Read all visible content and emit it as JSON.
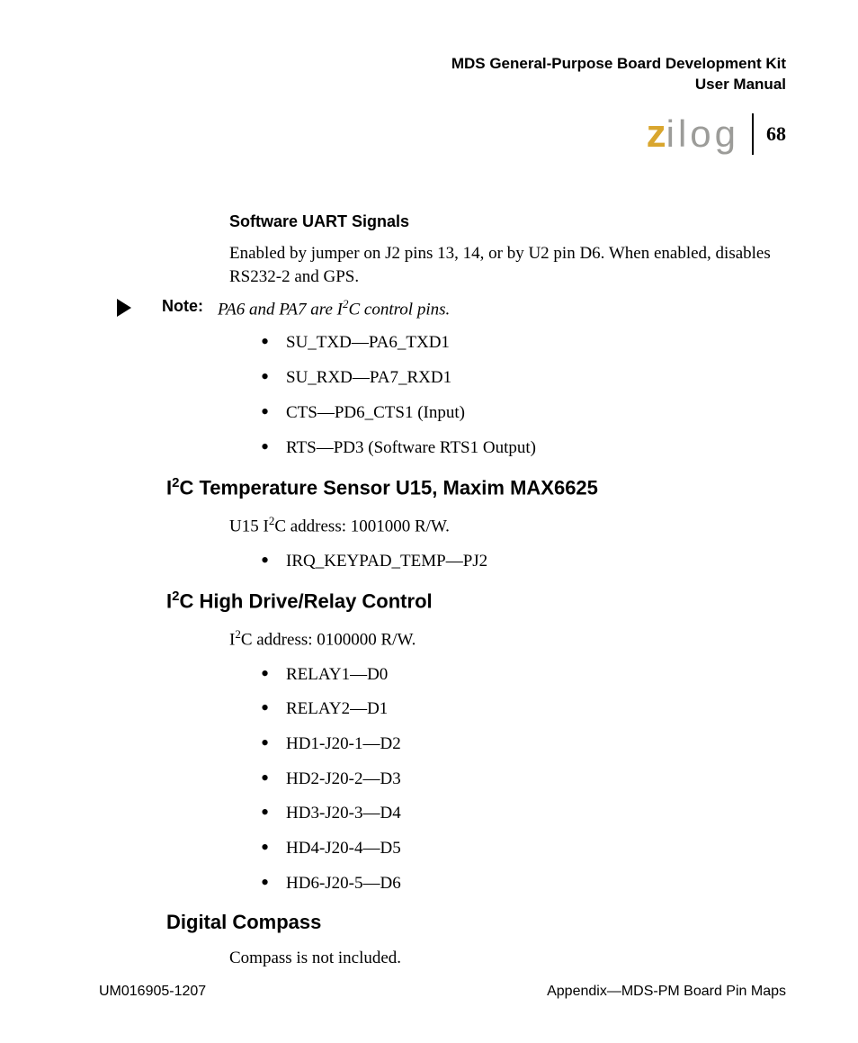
{
  "header": {
    "line1": "MDS General-Purpose Board Development Kit",
    "line2": "User Manual"
  },
  "logo": {
    "z": "z",
    "rest": "ilog"
  },
  "page_number": "68",
  "sections": {
    "uart": {
      "heading": "Software UART Signals",
      "para": "Enabled by jumper on J2 pins 13, 14, or by U2 pin D6. When enabled, disables RS232-2 and GPS.",
      "note_label": "Note:",
      "note_before": "PA6 and PA7 are I",
      "note_sup": "2",
      "note_after": "C control pins.",
      "bullets": [
        "SU_TXD—PA6_TXD1",
        "SU_RXD—PA7_RXD1",
        "CTS—PD6_CTS1 (Input)",
        "RTS—PD3 (Software RTS1 Output)"
      ]
    },
    "temp": {
      "heading_before": "I",
      "heading_sup": "2",
      "heading_after": "C Temperature Sensor U15, Maxim MAX6625",
      "para_before": "U15 I",
      "para_sup": "2",
      "para_after": "C address: 1001000 R/W.",
      "bullets": [
        "IRQ_KEYPAD_TEMP—PJ2"
      ]
    },
    "relay": {
      "heading_before": "I",
      "heading_sup": "2",
      "heading_after": "C High Drive/Relay Control",
      "para_before": "I",
      "para_sup": "2",
      "para_after": "C address: 0100000 R/W.",
      "bullets": [
        "RELAY1—D0",
        "RELAY2—D1",
        "HD1-J20-1—D2",
        "HD2-J20-2—D3",
        "HD3-J20-3—D4",
        "HD4-J20-4—D5",
        "HD6-J20-5—D6"
      ]
    },
    "compass": {
      "heading": "Digital Compass",
      "para": "Compass is not included."
    }
  },
  "footer": {
    "left": "UM016905-1207",
    "right": "Appendix—MDS-PM Board Pin Maps"
  }
}
